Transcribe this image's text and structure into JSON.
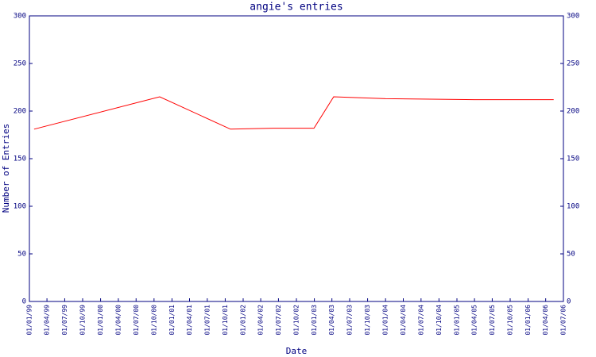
{
  "chart_data": {
    "type": "line",
    "title": "angie's entries",
    "x_label": "Date",
    "y_label": "Number of Entries",
    "x": [
      "25/01/99",
      "30/10/00",
      "28/10/01",
      "04/06/02",
      "30/12/02",
      "10/04/03",
      "01/01/04",
      "01/04/05",
      "12/05/06"
    ],
    "series": [
      {
        "name": "angie",
        "color": "#ff0000",
        "values": [
          181,
          215,
          181,
          182,
          182,
          215,
          213,
          212,
          212
        ]
      }
    ],
    "xlim": [
      "01/01/99",
      "01/07/06"
    ],
    "xticks": [
      "01/01/99",
      "01/04/99",
      "01/07/99",
      "01/10/99",
      "01/01/00",
      "01/04/00",
      "01/07/00",
      "01/10/00",
      "01/01/01",
      "01/04/01",
      "01/07/01",
      "01/10/01",
      "01/01/02",
      "01/04/02",
      "01/07/02",
      "01/10/02",
      "01/01/03",
      "01/04/03",
      "01/07/03",
      "01/10/03",
      "01/01/04",
      "01/04/04",
      "01/07/04",
      "01/10/04",
      "01/01/05",
      "01/04/05",
      "01/07/05",
      "01/10/05",
      "01/01/06",
      "01/04/06",
      "01/07/06"
    ],
    "ylim": [
      0,
      300
    ],
    "yticks": [
      0,
      50,
      100,
      150,
      200,
      250,
      300
    ],
    "y2lim": [
      0,
      300
    ],
    "y2ticks": [
      0,
      50,
      100,
      150,
      200,
      250,
      300
    ],
    "axis_color": "#000080"
  }
}
